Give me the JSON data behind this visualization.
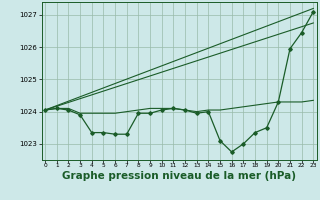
{
  "bg_color": "#cde8e8",
  "grid_color": "#99bbaa",
  "line_color": "#1a5c28",
  "marker_color": "#1a5c28",
  "xlabel": "Graphe pression niveau de la mer (hPa)",
  "xlabel_fontsize": 7.5,
  "ylim": [
    1022.5,
    1027.4
  ],
  "xlim": [
    -0.3,
    23.3
  ],
  "yticks": [
    1023,
    1024,
    1025,
    1026,
    1027
  ],
  "xticks": [
    0,
    1,
    2,
    3,
    4,
    5,
    6,
    7,
    8,
    9,
    10,
    11,
    12,
    13,
    14,
    15,
    16,
    17,
    18,
    19,
    20,
    21,
    22,
    23
  ],
  "line1_x": [
    0,
    1,
    2,
    3,
    4,
    5,
    6,
    7,
    8,
    9,
    10,
    11,
    12,
    13,
    14,
    15,
    16,
    17,
    18,
    19,
    20,
    21,
    22,
    23
  ],
  "line1_y": [
    1024.05,
    1024.1,
    1024.1,
    1023.95,
    1023.95,
    1023.95,
    1023.95,
    1024.0,
    1024.05,
    1024.1,
    1024.1,
    1024.1,
    1024.05,
    1024.0,
    1024.05,
    1024.05,
    1024.1,
    1024.15,
    1024.2,
    1024.25,
    1024.3,
    1024.3,
    1024.3,
    1024.35
  ],
  "line2_x": [
    0,
    23
  ],
  "line2_y": [
    1024.05,
    1027.2
  ],
  "line3_x": [
    0,
    23
  ],
  "line3_y": [
    1024.05,
    1026.75
  ],
  "line4_x": [
    0,
    1,
    2,
    3,
    4,
    5,
    6,
    7,
    8,
    9,
    10,
    11,
    12,
    13,
    14,
    15,
    16,
    17,
    18,
    19,
    20,
    21,
    22,
    23
  ],
  "line4_y": [
    1024.05,
    1024.1,
    1024.05,
    1023.9,
    1023.35,
    1023.35,
    1023.3,
    1023.3,
    1023.95,
    1023.95,
    1024.05,
    1024.1,
    1024.05,
    1023.95,
    1024.0,
    1023.1,
    1022.75,
    1023.0,
    1023.35,
    1023.5,
    1024.3,
    1025.95,
    1026.45,
    1027.1
  ]
}
